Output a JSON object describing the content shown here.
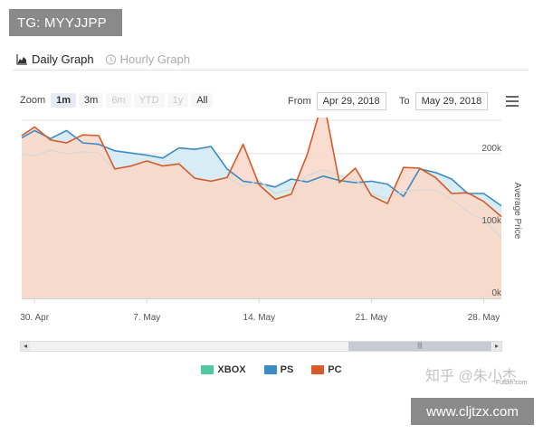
{
  "badge": {
    "tg_text": "TG: MYYJJPP"
  },
  "tabs": [
    {
      "label": "Daily Graph",
      "icon": "chart-area-icon",
      "active": true
    },
    {
      "label": "Hourly Graph",
      "icon": "clock-icon",
      "active": false
    }
  ],
  "zoom": {
    "label": "Zoom",
    "buttons": [
      {
        "label": "1m",
        "state": "selected"
      },
      {
        "label": "3m",
        "state": "normal"
      },
      {
        "label": "6m",
        "state": "disabled"
      },
      {
        "label": "YTD",
        "state": "disabled"
      },
      {
        "label": "1y",
        "state": "disabled"
      },
      {
        "label": "All",
        "state": "normal"
      }
    ]
  },
  "range": {
    "from_label": "From",
    "from_value": "Apr 29, 2018",
    "to_label": "To",
    "to_value": "May 29, 2018"
  },
  "chart_data": {
    "type": "area",
    "x_unit": "day",
    "x_ticks": [
      {
        "day": 1,
        "label": "30. Apr"
      },
      {
        "day": 8,
        "label": "7. May"
      },
      {
        "day": 15,
        "label": "14. May"
      },
      {
        "day": 22,
        "label": "21. May"
      },
      {
        "day": 29,
        "label": "28. May"
      }
    ],
    "xlim": [
      0.2,
      30.1
    ],
    "ylabel": "Average Price",
    "y_ticks": [
      {
        "value": 0,
        "label": "0k"
      },
      {
        "value": 100000,
        "label": "100k"
      },
      {
        "value": 200000,
        "label": "200k"
      }
    ],
    "ylim": [
      0,
      240000
    ],
    "grid": true,
    "legend_position": "bottom",
    "series": [
      {
        "name": "XBOX",
        "color": "#4fc7a0",
        "values": [
          [
            0.2,
            200000
          ],
          [
            1,
            197000
          ],
          [
            2,
            205000
          ],
          [
            3,
            200000
          ],
          [
            4,
            203000
          ],
          [
            5,
            201000
          ],
          [
            6,
            178000
          ],
          [
            7,
            182000
          ],
          [
            8,
            190000
          ],
          [
            9,
            183000
          ],
          [
            10,
            185000
          ],
          [
            11,
            166000
          ],
          [
            12,
            161000
          ],
          [
            13,
            167000
          ],
          [
            14,
            155000
          ],
          [
            15,
            163000
          ],
          [
            16,
            145000
          ],
          [
            17,
            151000
          ],
          [
            18,
            170000
          ],
          [
            19,
            178000
          ],
          [
            20,
            170000
          ],
          [
            21,
            164000
          ],
          [
            22,
            145000
          ],
          [
            23,
            138000
          ],
          [
            24,
            148000
          ],
          [
            25,
            150000
          ],
          [
            26,
            150000
          ],
          [
            27,
            137000
          ],
          [
            28,
            120000
          ],
          [
            29,
            108000
          ],
          [
            30.1,
            84000
          ]
        ]
      },
      {
        "name": "PS",
        "color": "#3a8cc8",
        "values": [
          [
            0.2,
            222000
          ],
          [
            1,
            232000
          ],
          [
            2,
            221000
          ],
          [
            3,
            232000
          ],
          [
            4,
            215000
          ],
          [
            5,
            213000
          ],
          [
            6,
            204000
          ],
          [
            7,
            201000
          ],
          [
            8,
            198000
          ],
          [
            9,
            194000
          ],
          [
            10,
            208000
          ],
          [
            11,
            206000
          ],
          [
            12,
            210000
          ],
          [
            13,
            179000
          ],
          [
            14,
            162000
          ],
          [
            15,
            159000
          ],
          [
            16,
            154000
          ],
          [
            17,
            165000
          ],
          [
            18,
            161000
          ],
          [
            19,
            169000
          ],
          [
            20,
            163000
          ],
          [
            21,
            160000
          ],
          [
            22,
            162000
          ],
          [
            23,
            158000
          ],
          [
            24,
            141000
          ],
          [
            25,
            179000
          ],
          [
            26,
            174000
          ],
          [
            27,
            165000
          ],
          [
            28,
            145000
          ],
          [
            29,
            145000
          ],
          [
            30.1,
            128000
          ]
        ]
      },
      {
        "name": "PC",
        "color": "#d75a28",
        "values": [
          [
            0.2,
            225000
          ],
          [
            1,
            237000
          ],
          [
            2,
            219000
          ],
          [
            3,
            215000
          ],
          [
            4,
            226000
          ],
          [
            5,
            225000
          ],
          [
            6,
            179000
          ],
          [
            7,
            183000
          ],
          [
            8,
            190000
          ],
          [
            9,
            183000
          ],
          [
            10,
            186000
          ],
          [
            11,
            166000
          ],
          [
            12,
            162000
          ],
          [
            13,
            167000
          ],
          [
            14,
            213000
          ],
          [
            15,
            157000
          ],
          [
            16,
            137000
          ],
          [
            17,
            144000
          ],
          [
            18,
            199000
          ],
          [
            19,
            276000
          ],
          [
            20,
            160000
          ],
          [
            21,
            180000
          ],
          [
            22,
            142000
          ],
          [
            23,
            131000
          ],
          [
            24,
            181000
          ],
          [
            25,
            180000
          ],
          [
            26,
            167000
          ],
          [
            27,
            145000
          ],
          [
            28,
            146000
          ],
          [
            29,
            134000
          ],
          [
            30.1,
            113000
          ]
        ]
      }
    ]
  },
  "watermarks": {
    "zhihu": "知乎 @朱小杰",
    "futbin": "Futbin.com",
    "site": "www.cljtzx.com"
  }
}
